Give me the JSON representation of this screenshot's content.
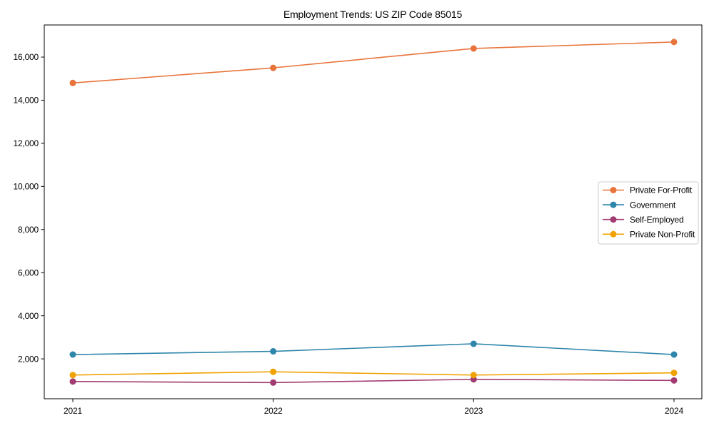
{
  "title": "Employment Trends: US ZIP Code 85015",
  "chart_data": {
    "type": "line",
    "title": "Employment Trends: US ZIP Code 85015",
    "xlabel": "",
    "ylabel": "",
    "x": [
      "2021",
      "2022",
      "2023",
      "2024"
    ],
    "series": [
      {
        "name": "Private For-Profit",
        "color": "#e8743b",
        "values": [
          14800,
          15500,
          16400,
          16700
        ]
      },
      {
        "name": "Government",
        "color": "#2e86ab",
        "values": [
          2200,
          2350,
          2700,
          2200
        ]
      },
      {
        "name": "Self-Employed",
        "color": "#a23b72",
        "values": [
          950,
          900,
          1050,
          1000
        ]
      },
      {
        "name": "Private Non-Profit",
        "color": "#f0a202",
        "values": [
          1250,
          1400,
          1250,
          1350
        ]
      }
    ],
    "yticks": [
      2000,
      4000,
      6000,
      8000,
      10000,
      12000,
      14000,
      16000
    ],
    "ylim": [
      150,
      17490
    ],
    "grid": false,
    "marker": "circle",
    "legend_position": "center-right",
    "axis_color": "#000000",
    "background_color": "#ffffff",
    "legend_border_color": "#cccccc"
  }
}
